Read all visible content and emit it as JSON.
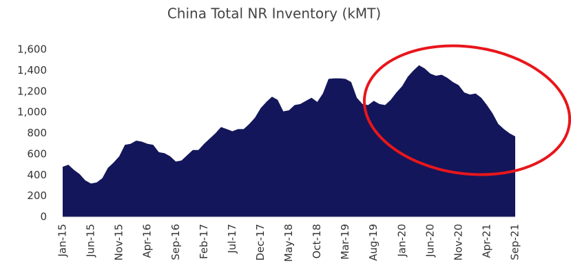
{
  "chart_data": {
    "type": "area",
    "title": "China Total NR Inventory (kMT)",
    "categories": [
      "Jan-15",
      null,
      null,
      null,
      null,
      "Jun-15",
      null,
      null,
      null,
      null,
      "Nov-15",
      null,
      null,
      null,
      null,
      "Apr-16",
      null,
      null,
      null,
      null,
      "Sep-16",
      null,
      null,
      null,
      null,
      "Feb-17",
      null,
      null,
      null,
      null,
      "Jul-17",
      null,
      null,
      null,
      null,
      "Dec-17",
      null,
      null,
      null,
      null,
      "May-18",
      null,
      null,
      null,
      null,
      "Oct-18",
      null,
      null,
      null,
      null,
      "Mar-19",
      null,
      null,
      null,
      null,
      "Aug-19",
      null,
      null,
      null,
      null,
      "Jan-20",
      null,
      null,
      null,
      null,
      "Jun-20",
      null,
      null,
      null,
      null,
      "Nov-20",
      null,
      null,
      null,
      null,
      "Apr-21",
      null,
      null,
      null,
      null,
      "Sep-21"
    ],
    "values": [
      480,
      500,
      450,
      410,
      350,
      320,
      330,
      370,
      470,
      520,
      580,
      690,
      700,
      730,
      720,
      700,
      690,
      620,
      610,
      580,
      530,
      540,
      590,
      640,
      640,
      700,
      750,
      800,
      860,
      840,
      820,
      840,
      840,
      890,
      950,
      1040,
      1100,
      1150,
      1120,
      1010,
      1020,
      1070,
      1080,
      1110,
      1140,
      1100,
      1180,
      1320,
      1325,
      1325,
      1320,
      1290,
      1140,
      1080,
      1070,
      1110,
      1080,
      1070,
      1120,
      1190,
      1250,
      1340,
      1400,
      1450,
      1420,
      1370,
      1350,
      1360,
      1330,
      1290,
      1260,
      1190,
      1170,
      1180,
      1140,
      1070,
      990,
      890,
      840,
      800,
      770
    ],
    "color": "#13165a",
    "ylim": [
      0,
      1600
    ],
    "yticks": [
      0,
      200,
      400,
      600,
      800,
      {
        "value": 1000,
        "label": "1,000"
      },
      {
        "value": 1200,
        "label": "1,200"
      },
      {
        "value": 1400,
        "label": "1,400"
      },
      {
        "value": 1600,
        "label": "1,600"
      }
    ]
  }
}
